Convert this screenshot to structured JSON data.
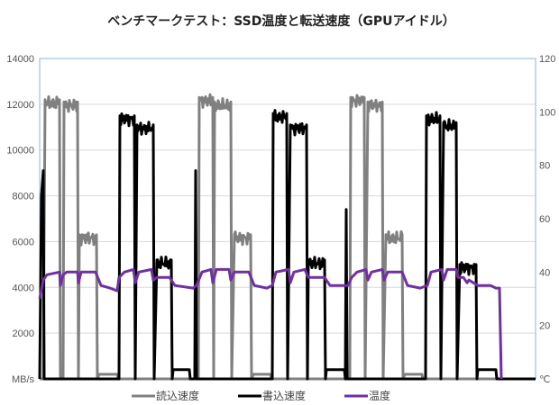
{
  "chart_data": {
    "type": "line",
    "title": "ベンチマークテスト：SSD温度と転送速度（GPUアイドル）",
    "y_left": {
      "unit_label": "MB/s",
      "range": [
        0,
        14000
      ],
      "ticks": [
        "MB/s",
        "2000",
        "4000",
        "6000",
        "8000",
        "10000",
        "12000",
        "14000"
      ]
    },
    "y_right": {
      "unit_label": "℃",
      "range": [
        0,
        120
      ],
      "ticks": [
        "℃",
        "20",
        "40",
        "60",
        "80",
        "100",
        "120"
      ]
    },
    "x_range": [
      0,
      550
    ],
    "grid": true,
    "legend_position": "bottom",
    "series": [
      {
        "name": "読込速度",
        "axis": "left",
        "color": "#808080",
        "points": [
          [
            0,
            0
          ],
          [
            4,
            0
          ],
          [
            6,
            12200
          ],
          [
            22,
            12200
          ],
          [
            23,
            0
          ],
          [
            26,
            0
          ],
          [
            27,
            12100
          ],
          [
            42,
            12100
          ],
          [
            43,
            0
          ],
          [
            44,
            6300
          ],
          [
            63,
            6300
          ],
          [
            64,
            0
          ],
          [
            66,
            200
          ],
          [
            86,
            200
          ],
          [
            87,
            0
          ],
          [
            176,
            0
          ],
          [
            177,
            12300
          ],
          [
            192,
            12300
          ],
          [
            193,
            0
          ],
          [
            194,
            12100
          ],
          [
            212,
            12100
          ],
          [
            213,
            0
          ],
          [
            216,
            6300
          ],
          [
            234,
            6300
          ],
          [
            235,
            0
          ],
          [
            237,
            200
          ],
          [
            256,
            200
          ],
          [
            257,
            0
          ],
          [
            344,
            0
          ],
          [
            345,
            12300
          ],
          [
            360,
            12300
          ],
          [
            361,
            0
          ],
          [
            364,
            12100
          ],
          [
            380,
            12100
          ],
          [
            381,
            0
          ],
          [
            384,
            6300
          ],
          [
            402,
            6300
          ],
          [
            403,
            0
          ],
          [
            405,
            200
          ],
          [
            424,
            200
          ],
          [
            425,
            0
          ],
          [
            550,
            0
          ]
        ]
      },
      {
        "name": "書込速度",
        "axis": "left",
        "color": "#000000",
        "points": [
          [
            0,
            0
          ],
          [
            2,
            8000
          ],
          [
            4,
            9100
          ],
          [
            5,
            0
          ],
          [
            88,
            0
          ],
          [
            89,
            11500
          ],
          [
            105,
            11500
          ],
          [
            106,
            0
          ],
          [
            108,
            11100
          ],
          [
            126,
            11100
          ],
          [
            127,
            0
          ],
          [
            130,
            5200
          ],
          [
            146,
            5200
          ],
          [
            147,
            0
          ],
          [
            148,
            400
          ],
          [
            166,
            400
          ],
          [
            167,
            0
          ],
          [
            172,
            0
          ],
          [
            173,
            9100
          ],
          [
            174,
            0
          ],
          [
            258,
            0
          ],
          [
            259,
            11600
          ],
          [
            274,
            11600
          ],
          [
            275,
            0
          ],
          [
            278,
            11100
          ],
          [
            296,
            11100
          ],
          [
            297,
            0
          ],
          [
            298,
            5200
          ],
          [
            316,
            5200
          ],
          [
            317,
            0
          ],
          [
            318,
            400
          ],
          [
            338,
            400
          ],
          [
            339,
            0
          ],
          [
            340,
            7400
          ],
          [
            341,
            0
          ],
          [
            428,
            0
          ],
          [
            429,
            11500
          ],
          [
            444,
            11500
          ],
          [
            445,
            0
          ],
          [
            448,
            11200
          ],
          [
            462,
            11200
          ],
          [
            463,
            0
          ],
          [
            466,
            5000
          ],
          [
            484,
            5000
          ],
          [
            485,
            0
          ],
          [
            486,
            400
          ],
          [
            506,
            400
          ],
          [
            507,
            0
          ],
          [
            550,
            0
          ]
        ]
      },
      {
        "name": "温度",
        "axis": "right",
        "color": "#7030a0",
        "points": [
          [
            0,
            30
          ],
          [
            4,
            37
          ],
          [
            8,
            39
          ],
          [
            22,
            40
          ],
          [
            23,
            35
          ],
          [
            26,
            39
          ],
          [
            30,
            40
          ],
          [
            42,
            40
          ],
          [
            43,
            36
          ],
          [
            46,
            40
          ],
          [
            62,
            40
          ],
          [
            68,
            35
          ],
          [
            78,
            34
          ],
          [
            86,
            33
          ],
          [
            88,
            38
          ],
          [
            94,
            40
          ],
          [
            104,
            41
          ],
          [
            106,
            36
          ],
          [
            110,
            40
          ],
          [
            124,
            41
          ],
          [
            126,
            37
          ],
          [
            130,
            38
          ],
          [
            144,
            38
          ],
          [
            150,
            35
          ],
          [
            170,
            34
          ],
          [
            174,
            35
          ],
          [
            180,
            40
          ],
          [
            190,
            41
          ],
          [
            192,
            36
          ],
          [
            196,
            41
          ],
          [
            210,
            41
          ],
          [
            212,
            37
          ],
          [
            216,
            40
          ],
          [
            232,
            40
          ],
          [
            238,
            35
          ],
          [
            252,
            34
          ],
          [
            258,
            35
          ],
          [
            262,
            40
          ],
          [
            276,
            41
          ],
          [
            278,
            36
          ],
          [
            282,
            40
          ],
          [
            294,
            41
          ],
          [
            298,
            38
          ],
          [
            316,
            38
          ],
          [
            322,
            35
          ],
          [
            342,
            35
          ],
          [
            346,
            38
          ],
          [
            352,
            40
          ],
          [
            362,
            41
          ],
          [
            364,
            37
          ],
          [
            368,
            40
          ],
          [
            380,
            41
          ],
          [
            382,
            37
          ],
          [
            386,
            40
          ],
          [
            402,
            40
          ],
          [
            408,
            35
          ],
          [
            422,
            34
          ],
          [
            430,
            35
          ],
          [
            434,
            40
          ],
          [
            446,
            41
          ],
          [
            448,
            37
          ],
          [
            452,
            41
          ],
          [
            462,
            41
          ],
          [
            464,
            38
          ],
          [
            470,
            38
          ],
          [
            474,
            36
          ],
          [
            476,
            37
          ],
          [
            486,
            35
          ],
          [
            500,
            35
          ],
          [
            506,
            34
          ],
          [
            510,
            34
          ],
          [
            512,
            0
          ]
        ]
      }
    ]
  }
}
